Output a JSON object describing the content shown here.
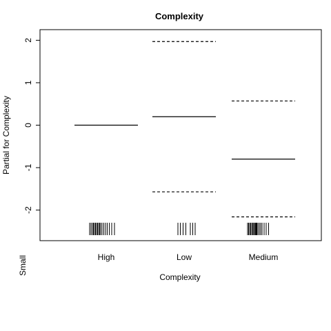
{
  "chart_data": {
    "type": "termplot",
    "title": "Complexity",
    "xlabel": "Complexity",
    "ylabel": "Partial for Complexity",
    "margin_label": "Small",
    "categories": [
      "High",
      "Low",
      "Medium"
    ],
    "ylim": [
      -2.72,
      2.25
    ],
    "yticks": [
      2,
      1,
      0,
      -1,
      -2
    ],
    "ytick_labels": [
      "2",
      "1",
      "0",
      "-1",
      "-2"
    ],
    "effect": [
      0.0,
      0.2,
      -0.8
    ],
    "upper_se": [
      null,
      1.97,
      0.57
    ],
    "lower_se": [
      null,
      -1.57,
      -2.16
    ],
    "rug": [
      [
        -0.48,
        -0.44,
        -0.4,
        -0.37,
        -0.34,
        -0.31,
        -0.28,
        -0.25,
        -0.22,
        -0.19,
        -0.16,
        -0.12,
        -0.07,
        -0.02,
        0.03,
        0.09,
        0.16,
        0.24
      ],
      [
        -0.18,
        -0.11,
        -0.03,
        0.05,
        0.18,
        0.25,
        0.32
      ],
      [
        -0.46,
        -0.43,
        -0.4,
        -0.37,
        -0.34,
        -0.31,
        -0.28,
        -0.26,
        -0.23,
        -0.21,
        -0.19,
        -0.16,
        -0.12,
        -0.08,
        -0.04,
        0.02,
        0.08,
        0.15
      ]
    ],
    "grid": false,
    "legend": "none"
  }
}
